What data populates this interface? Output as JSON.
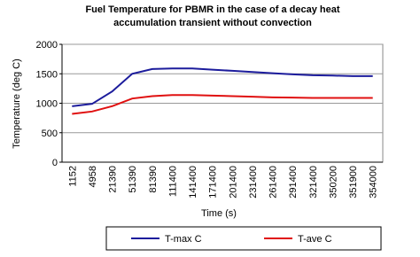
{
  "chart_data": {
    "type": "line",
    "title": "Fuel Temperature for PBMR in the case of a decay heat",
    "subtitle": "accumulation transient without convection",
    "x_label": "Time (s)",
    "y_label": "Temperature (deg C)",
    "categories": [
      "1152",
      "4958",
      "21390",
      "51390",
      "81390",
      "111400",
      "141400",
      "171400",
      "201400",
      "231400",
      "261400",
      "291400",
      "321400",
      "350200",
      "351900",
      "354000"
    ],
    "series": [
      {
        "name": "T-max C",
        "color": "#1c1c9c",
        "values": [
          950,
          990,
          1200,
          1500,
          1580,
          1590,
          1590,
          1570,
          1550,
          1530,
          1510,
          1490,
          1475,
          1470,
          1460,
          1460
        ]
      },
      {
        "name": "T-ave C",
        "color": "#e01010",
        "values": [
          820,
          860,
          950,
          1080,
          1120,
          1140,
          1140,
          1130,
          1120,
          1110,
          1100,
          1095,
          1090,
          1090,
          1090,
          1090
        ]
      }
    ],
    "ylim": [
      0,
      2000
    ],
    "yticks": [
      0,
      500,
      1000,
      1500,
      2000
    ],
    "grid": true
  }
}
